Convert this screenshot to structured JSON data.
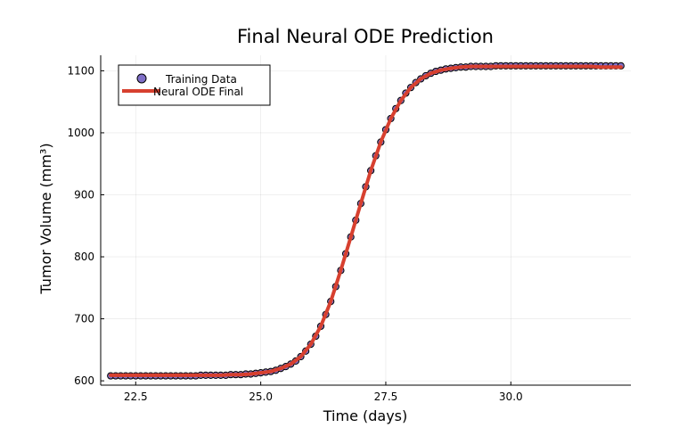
{
  "chart_data": {
    "type": "line",
    "title": "Final Neural ODE Prediction",
    "xlabel": "Time (days)",
    "ylabel": "Tumor Volume (mm³)",
    "xlim": [
      21.8,
      32.4
    ],
    "ylim": [
      593,
      1125
    ],
    "xticks": [
      22.5,
      25.0,
      27.5,
      30.0
    ],
    "xtick_labels": [
      "22.5",
      "25.0",
      "27.5",
      "30.0"
    ],
    "yticks": [
      600,
      700,
      800,
      900,
      1000,
      1100
    ],
    "ytick_labels": [
      "600",
      "700",
      "800",
      "900",
      "1000",
      "1100"
    ],
    "grid": true,
    "legend_position": "top-left",
    "series": [
      {
        "name": "Training Data",
        "kind": "scatter",
        "color": "#7f6fc7",
        "x": [
          22.0,
          22.1,
          22.2,
          22.3,
          22.4,
          22.5,
          22.6,
          22.7,
          22.8,
          22.9,
          23.0,
          23.1,
          23.2,
          23.3,
          23.4,
          23.5,
          23.6,
          23.7,
          23.8,
          23.9,
          24.0,
          24.1,
          24.2,
          24.3,
          24.4,
          24.5,
          24.6,
          24.7,
          24.8,
          24.9,
          25.0,
          25.1,
          25.2,
          25.3,
          25.4,
          25.5,
          25.6,
          25.7,
          25.8,
          25.9,
          26.0,
          26.1,
          26.2,
          26.3,
          26.4,
          26.5,
          26.6,
          26.7,
          26.8,
          26.9,
          27.0,
          27.1,
          27.2,
          27.3,
          27.4,
          27.5,
          27.6,
          27.7,
          27.8,
          27.9,
          28.0,
          28.1,
          28.2,
          28.3,
          28.4,
          28.5,
          28.6,
          28.7,
          28.8,
          28.9,
          29.0,
          29.1,
          29.2,
          29.3,
          29.4,
          29.5,
          29.6,
          29.7,
          29.8,
          29.9,
          30.0,
          30.1,
          30.2,
          30.3,
          30.4,
          30.5,
          30.6,
          30.7,
          30.8,
          30.9,
          31.0,
          31.1,
          31.2,
          31.3,
          31.4,
          31.5,
          31.6,
          31.7,
          31.8,
          31.9,
          32.0,
          32.1,
          32.2
        ],
        "y": [
          608,
          608,
          608,
          608,
          608,
          608,
          608,
          608,
          608,
          608,
          608,
          608,
          608,
          608,
          608,
          608,
          608,
          608,
          609,
          609,
          609,
          609,
          609,
          609,
          610,
          610,
          610,
          611,
          611,
          612,
          613,
          614,
          615,
          617,
          620,
          623,
          627,
          632,
          639,
          648,
          659,
          672,
          688,
          707,
          728,
          752,
          778,
          805,
          832,
          859,
          886,
          913,
          939,
          963,
          985,
          1005,
          1023,
          1039,
          1052,
          1064,
          1073,
          1081,
          1087,
          1092,
          1096,
          1099,
          1101,
          1103,
          1104,
          1105,
          1106,
          1106,
          1107,
          1107,
          1107,
          1107,
          1107,
          1108,
          1108,
          1108,
          1108,
          1108,
          1108,
          1108,
          1108,
          1108,
          1108,
          1108,
          1108,
          1108,
          1108,
          1108,
          1108,
          1108,
          1108,
          1108,
          1108,
          1108,
          1108,
          1108,
          1108,
          1108,
          1108
        ]
      },
      {
        "name": "Neural ODE Final",
        "kind": "line",
        "color": "#d7402f",
        "x": [
          22.0,
          22.2,
          22.4,
          22.6,
          22.8,
          23.0,
          23.2,
          23.4,
          23.6,
          23.8,
          24.0,
          24.2,
          24.4,
          24.6,
          24.8,
          25.0,
          25.2,
          25.4,
          25.6,
          25.8,
          26.0,
          26.2,
          26.4,
          26.6,
          26.8,
          27.0,
          27.2,
          27.4,
          27.6,
          27.8,
          28.0,
          28.2,
          28.4,
          28.6,
          28.8,
          29.0,
          29.2,
          29.4,
          29.6,
          29.8,
          30.0,
          30.2,
          30.4,
          30.6,
          30.8,
          31.0,
          31.2,
          31.4,
          31.6,
          31.8,
          32.0,
          32.2
        ],
        "y": [
          609,
          609,
          609,
          609,
          609,
          609,
          609,
          609,
          609,
          609,
          609,
          609,
          610,
          610,
          611,
          613,
          615,
          620,
          627,
          639,
          659,
          688,
          728,
          778,
          832,
          886,
          939,
          985,
          1023,
          1052,
          1073,
          1087,
          1096,
          1101,
          1104,
          1106,
          1107,
          1107,
          1107,
          1107,
          1107,
          1107,
          1107,
          1107,
          1107,
          1107,
          1107,
          1107,
          1107,
          1106,
          1106,
          1106
        ]
      }
    ]
  }
}
